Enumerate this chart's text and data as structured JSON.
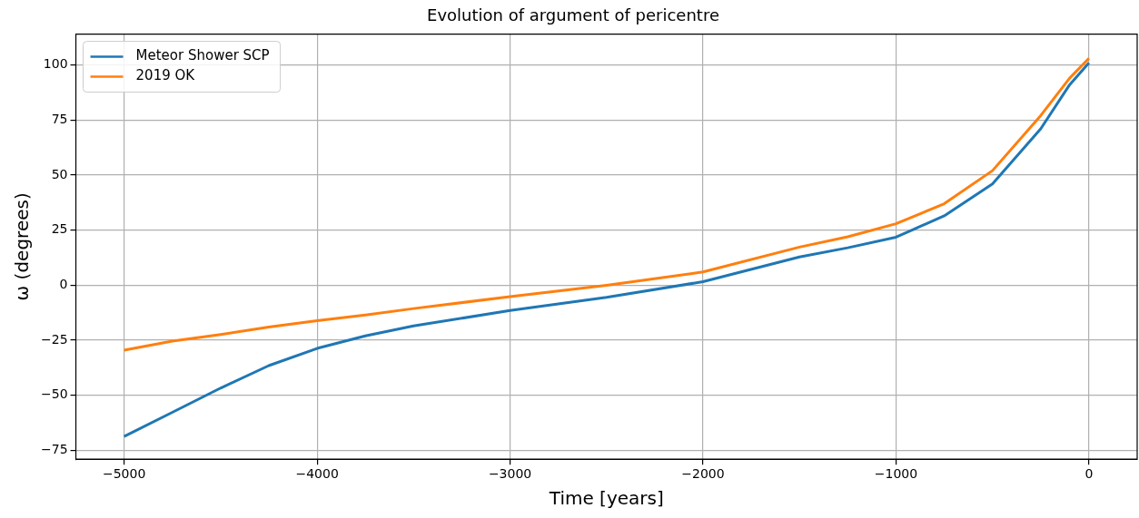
{
  "chart_data": {
    "type": "line",
    "title": "Evolution of argument of pericentre",
    "xlabel": "Time [years]",
    "ylabel": "ω (degrees)",
    "x": [
      -5000,
      -4750,
      -4500,
      -4250,
      -4000,
      -3750,
      -3500,
      -3000,
      -2500,
      -2000,
      -1500,
      -1250,
      -1000,
      -750,
      -500,
      -250,
      -100,
      0
    ],
    "series": [
      {
        "name": "Meteor Shower SCP",
        "color": "#1f77b4",
        "values": [
          -68.7,
          -57.7,
          -46.7,
          -36.5,
          -28.7,
          -23,
          -18.5,
          -11.5,
          -5.5,
          1.6,
          12.8,
          17,
          21.8,
          31.5,
          46,
          71,
          91,
          101
        ]
      },
      {
        "name": "2019 OK",
        "color": "#ff7f0e",
        "values": [
          -29.5,
          -25.4,
          -22.4,
          -19,
          -16.1,
          -13.5,
          -10.6,
          -5.2,
          0,
          6,
          17.3,
          22,
          27.9,
          37,
          52,
          77,
          94,
          103
        ]
      }
    ],
    "xlim": [
      -5250,
      250
    ],
    "xticks": [
      {
        "value": -5000,
        "label": "−5000"
      },
      {
        "value": -4000,
        "label": "−4000"
      },
      {
        "value": -3000,
        "label": "−3000"
      },
      {
        "value": -2000,
        "label": "−2000"
      },
      {
        "value": -1000,
        "label": "−1000"
      },
      0
    ],
    "ylim": [
      -79,
      114
    ],
    "yticks": [
      {
        "value": -75,
        "label": "−75"
      },
      {
        "value": -50,
        "label": "−50"
      },
      {
        "value": -25,
        "label": "−25"
      },
      0,
      25,
      50,
      75,
      100
    ],
    "grid": true,
    "legend": "top left",
    "marker": "none",
    "line_style": "solid"
  }
}
